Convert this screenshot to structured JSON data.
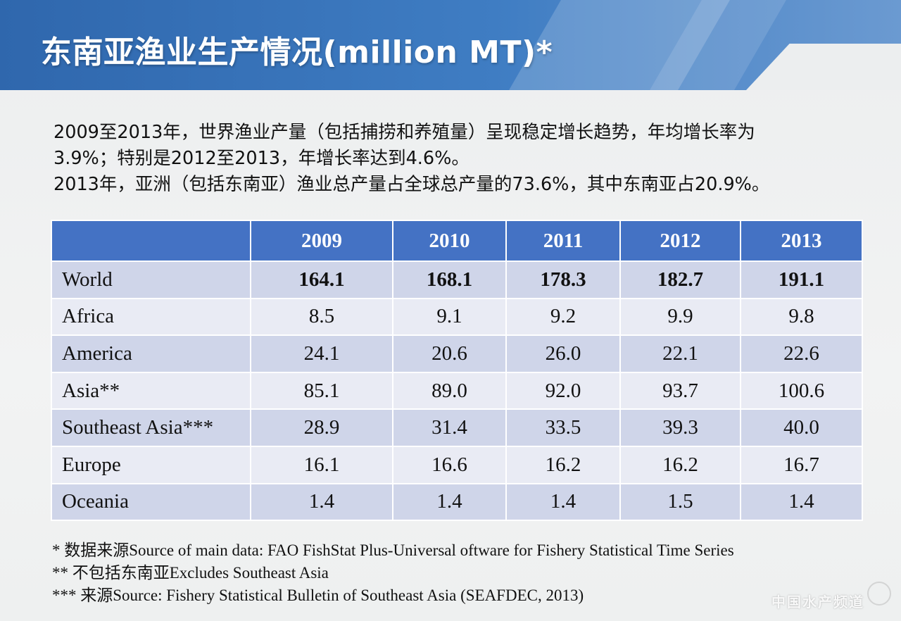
{
  "slide": {
    "title": "东南亚渔业生产情况(million MT)*",
    "paragraphs": [
      "2009至2013年，世界渔业产量（包括捕捞和养殖量）呈现稳定增长趋势，年均增长率为",
      "3.9%；特别是2012至2013，年增长率达到4.6%。",
      "2013年，亚洲（包括东南亚）渔业总产量占全球总产量的73.6%，其中东南亚占20.9%。"
    ]
  },
  "table": {
    "corner": "",
    "years": [
      "2009",
      "2010",
      "2011",
      "2012",
      "2013"
    ],
    "rows": [
      {
        "label": "World",
        "values": [
          "164.1",
          "168.1",
          "178.3",
          "182.7",
          "191.1"
        ]
      },
      {
        "label": "Africa",
        "values": [
          "8.5",
          "9.1",
          "9.2",
          "9.9",
          "9.8"
        ]
      },
      {
        "label": "America",
        "values": [
          "24.1",
          "20.6",
          "26.0",
          "22.1",
          "22.6"
        ]
      },
      {
        "label": "Asia**",
        "values": [
          "85.1",
          "89.0",
          "92.0",
          "93.7",
          "100.6"
        ]
      },
      {
        "label": "Southeast Asia***",
        "values": [
          "28.9",
          "31.4",
          "33.5",
          "39.3",
          "40.0"
        ]
      },
      {
        "label": "Europe",
        "values": [
          "16.1",
          "16.6",
          "16.2",
          "16.2",
          "16.7"
        ]
      },
      {
        "label": "Oceania",
        "values": [
          "1.4",
          "1.4",
          "1.4",
          "1.5",
          "1.4"
        ]
      }
    ]
  },
  "notes": [
    "* 数据来源Source of main data: FAO FishStat Plus-Universal oftware for Fishery Statistical Time Series",
    "** 不包括东南亚Excludes Southeast Asia",
    "*** 来源Source: Fishery Statistical Bulletin of Southeast Asia (SEAFDEC, 2013)"
  ],
  "watermark": "中国水产频道",
  "colors": {
    "header_blue": "#3f7dc3",
    "table_header": "#4472c4",
    "row_odd": "#cfd5e9",
    "row_even": "#e9ebf4"
  }
}
